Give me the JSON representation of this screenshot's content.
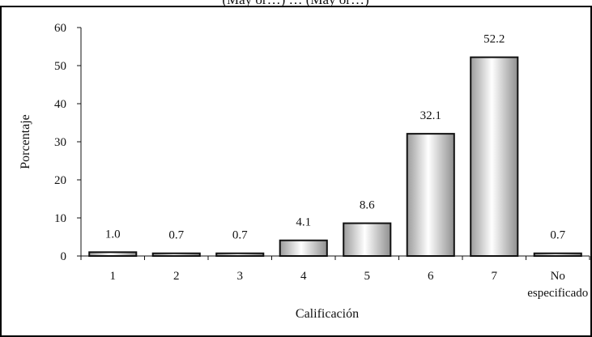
{
  "header_fragment": "(May or…) … (May or…)",
  "chart_data": {
    "type": "bar",
    "categories": [
      "1",
      "2",
      "3",
      "4",
      "5",
      "6",
      "7",
      "No\nespecificado"
    ],
    "values": [
      1.0,
      0.7,
      0.7,
      4.1,
      8.6,
      32.1,
      52.2,
      0.7
    ],
    "data_labels": [
      "1.0",
      "0.7",
      "0.7",
      "4.1",
      "8.6",
      "32.1",
      "52.2",
      "0.7"
    ],
    "xlabel": "Calificación",
    "ylabel": "Porcentaje",
    "ylim": [
      0,
      60
    ],
    "yticks": [
      "0",
      "10",
      "20",
      "30",
      "40",
      "50",
      "60"
    ],
    "grid": false,
    "bar_fill": "#d9d9d9",
    "bar_stroke": "#111111"
  }
}
